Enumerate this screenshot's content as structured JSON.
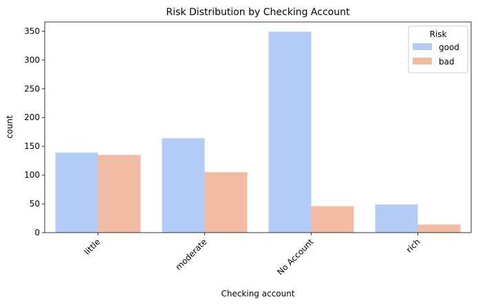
{
  "chart_data": {
    "type": "bar",
    "title": "Risk Distribution by Checking Account",
    "xlabel": "Checking account",
    "ylabel": "count",
    "categories": [
      "little",
      "moderate",
      "No Account",
      "rich"
    ],
    "series": [
      {
        "name": "good",
        "values": [
          139,
          164,
          349,
          49
        ],
        "color": "#b3cbf5"
      },
      {
        "name": "bad",
        "values": [
          135,
          105,
          46,
          14
        ],
        "color": "#f2bca4"
      }
    ],
    "ylim": [
      0,
      366
    ],
    "yticks": [
      0,
      50,
      100,
      150,
      200,
      250,
      300,
      350
    ],
    "legend": {
      "title": "Risk",
      "placement": "top-right"
    },
    "grid": false
  }
}
